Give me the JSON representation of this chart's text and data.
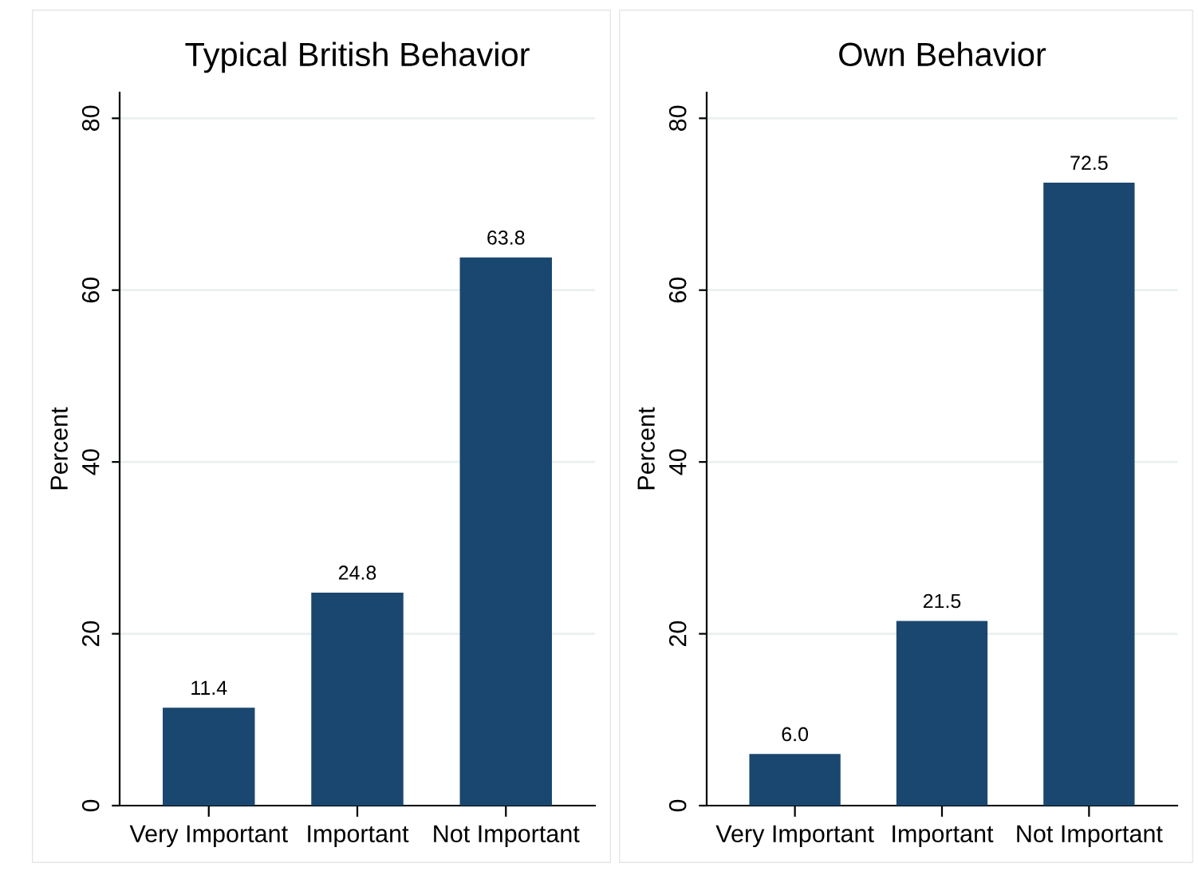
{
  "chart_data": [
    {
      "type": "bar",
      "title": "Typical British Behavior",
      "ylabel": "Percent",
      "categories": [
        "Very Important",
        "Important",
        "Not Important"
      ],
      "values": [
        11.4,
        24.8,
        63.8
      ],
      "color": "#1a476f",
      "value_labels": [
        "11.4",
        "24.8",
        "63.8"
      ],
      "ylim": [
        0,
        83
      ],
      "yticks": [
        0,
        20,
        40,
        60,
        80
      ],
      "grid": "y"
    },
    {
      "type": "bar",
      "title": "Own Behavior",
      "ylabel": "Percent",
      "categories": [
        "Very Important",
        "Important",
        "Not Important"
      ],
      "values": [
        6.0,
        21.5,
        72.5
      ],
      "color": "#1a476f",
      "value_labels": [
        "6.0",
        "21.5",
        "72.5"
      ],
      "ylim": [
        0,
        83
      ],
      "yticks": [
        0,
        20,
        40,
        60,
        80
      ],
      "grid": "y"
    }
  ]
}
